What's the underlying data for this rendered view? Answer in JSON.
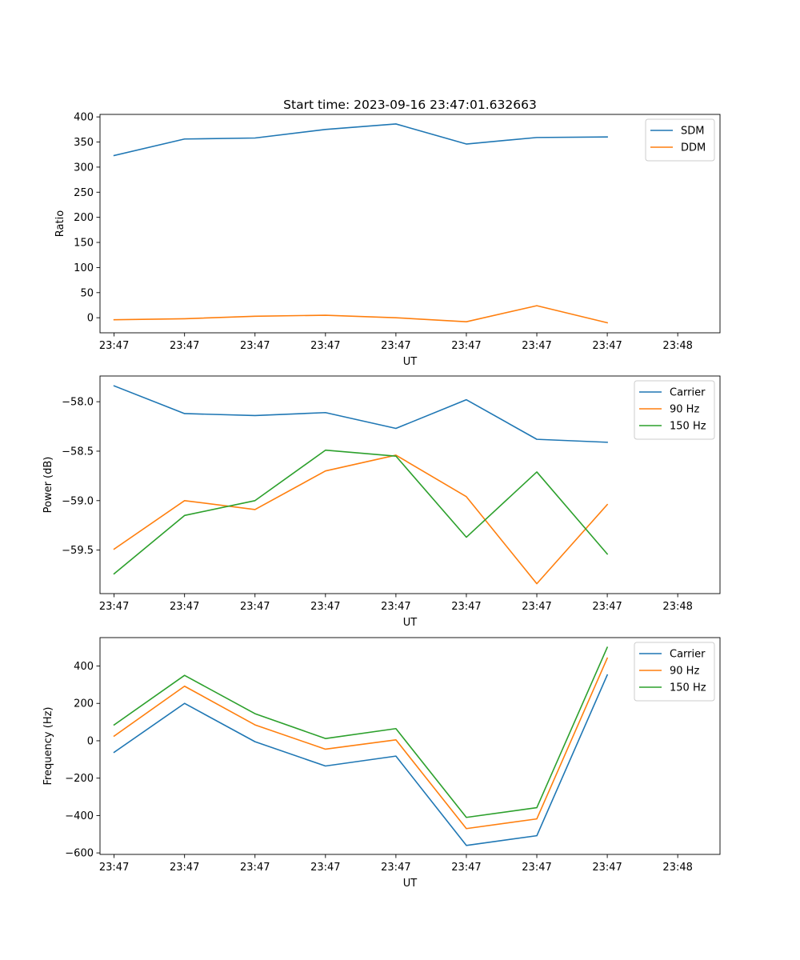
{
  "chart_data": [
    {
      "type": "line",
      "title": "Start time: 2023-09-16 23:47:01.632663",
      "xlabel": "UT",
      "ylabel": "Ratio",
      "x": [
        0.5,
        1.0,
        1.5,
        2.0,
        2.5,
        3.0,
        3.5,
        4.0
      ],
      "xlim": [
        0.4,
        4.8
      ],
      "xticks": [
        0.5,
        1.0,
        1.5,
        2.0,
        2.5,
        3.0,
        3.5,
        4.0,
        4.5
      ],
      "xtick_labels": [
        "23:47",
        "23:47",
        "23:47",
        "23:47",
        "23:47",
        "23:47",
        "23:47",
        "23:47",
        "23:48"
      ],
      "ylim": [
        -30,
        405
      ],
      "yticks": [
        0,
        50,
        100,
        150,
        200,
        250,
        300,
        350,
        400
      ],
      "ytick_labels": [
        "0",
        "50",
        "100",
        "150",
        "200",
        "250",
        "300",
        "350",
        "400"
      ],
      "legend_position": "top-right",
      "series": [
        {
          "name": "SDM",
          "color": "#1f77b4",
          "values": [
            323,
            356,
            358,
            375,
            386,
            346,
            359,
            360
          ]
        },
        {
          "name": "DDM",
          "color": "#ff7f0e",
          "values": [
            -4,
            -2,
            3,
            5,
            0,
            -8,
            24,
            -10
          ]
        }
      ]
    },
    {
      "type": "line",
      "title": "",
      "xlabel": "UT",
      "ylabel": "Power (dB)",
      "x": [
        0.5,
        1.0,
        1.5,
        2.0,
        2.5,
        3.0,
        3.5,
        4.0
      ],
      "xlim": [
        0.4,
        4.8
      ],
      "xticks": [
        0.5,
        1.0,
        1.5,
        2.0,
        2.5,
        3.0,
        3.5,
        4.0,
        4.5
      ],
      "xtick_labels": [
        "23:47",
        "23:47",
        "23:47",
        "23:47",
        "23:47",
        "23:47",
        "23:47",
        "23:47",
        "23:48"
      ],
      "ylim": [
        -59.94,
        -57.74
      ],
      "yticks": [
        -59.5,
        -59.0,
        -58.5,
        -58.0
      ],
      "ytick_labels": [
        "−59.5",
        "−59.0",
        "−58.5",
        "−58.0"
      ],
      "legend_position": "top-right",
      "series": [
        {
          "name": "Carrier",
          "color": "#1f77b4",
          "values": [
            -57.84,
            -58.12,
            -58.14,
            -58.11,
            -58.27,
            -57.98,
            -58.38,
            -58.41
          ]
        },
        {
          "name": "90 Hz",
          "color": "#ff7f0e",
          "values": [
            -59.49,
            -59.0,
            -59.09,
            -58.7,
            -58.54,
            -58.96,
            -59.84,
            -59.04
          ]
        },
        {
          "name": "150 Hz",
          "color": "#2ca02c",
          "values": [
            -59.74,
            -59.15,
            -59.0,
            -58.49,
            -58.55,
            -59.37,
            -58.71,
            -59.54
          ]
        }
      ]
    },
    {
      "type": "line",
      "title": "",
      "xlabel": "UT",
      "ylabel": "Frequency (Hz)",
      "x": [
        0.5,
        1.0,
        1.5,
        2.0,
        2.5,
        3.0,
        3.5,
        4.0
      ],
      "xlim": [
        0.4,
        4.8
      ],
      "xticks": [
        0.5,
        1.0,
        1.5,
        2.0,
        2.5,
        3.0,
        3.5,
        4.0,
        4.5
      ],
      "xtick_labels": [
        "23:47",
        "23:47",
        "23:47",
        "23:47",
        "23:47",
        "23:47",
        "23:47",
        "23:47",
        "23:48"
      ],
      "ylim": [
        -608,
        552
      ],
      "yticks": [
        -600,
        -400,
        -200,
        0,
        200,
        400
      ],
      "ytick_labels": [
        "−600",
        "−400",
        "−200",
        "0",
        "200",
        "400"
      ],
      "legend_position": "top-right",
      "series": [
        {
          "name": "Carrier",
          "color": "#1f77b4",
          "values": [
            -62,
            200,
            -5,
            -135,
            -82,
            -560,
            -508,
            352
          ]
        },
        {
          "name": "90 Hz",
          "color": "#ff7f0e",
          "values": [
            25,
            292,
            85,
            -45,
            5,
            -470,
            -418,
            442
          ]
        },
        {
          "name": "150 Hz",
          "color": "#2ca02c",
          "values": [
            85,
            350,
            145,
            12,
            65,
            -410,
            -358,
            500
          ]
        }
      ]
    }
  ]
}
